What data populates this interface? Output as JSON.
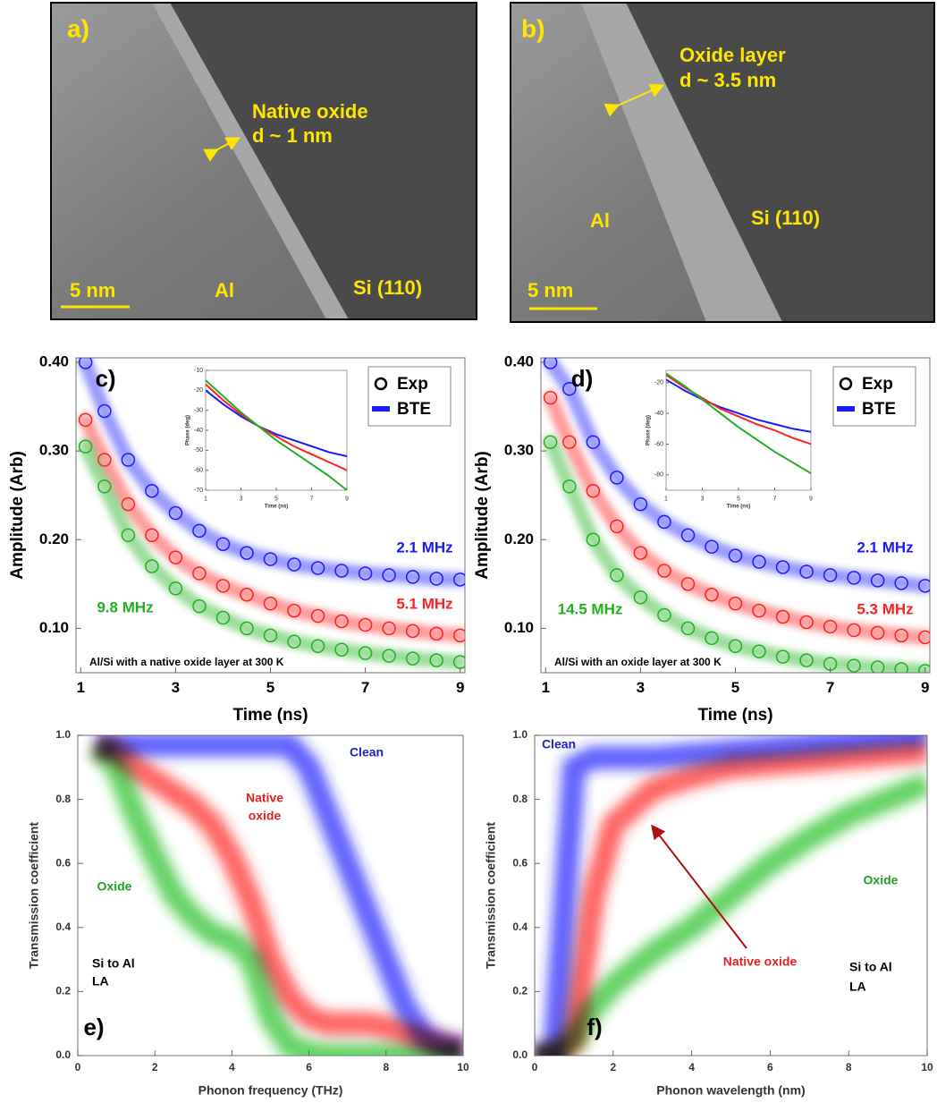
{
  "images": [
    {
      "label": "a)",
      "annotations": [
        "Native oxide",
        "d ~ 1 nm",
        "Al",
        "Si (110)"
      ],
      "scale_bar": "5 nm"
    },
    {
      "label": "b)",
      "annotations": [
        "Oxide layer",
        "d ~ 3.5 nm",
        "Al",
        "Si (110)"
      ],
      "scale_bar": "5 nm"
    }
  ],
  "chart_data": [
    {
      "type": "line",
      "label": "c)",
      "xlabel": "Time (ns)",
      "ylabel": "Amplitude (Arb)",
      "x": [
        1.1,
        1.5,
        2,
        2.5,
        3,
        3.5,
        4,
        4.5,
        5,
        5.5,
        6,
        6.5,
        7,
        7.5,
        8,
        8.5,
        9
      ],
      "xlim": [
        0.9,
        9.1
      ],
      "xticks": [
        1,
        3,
        5,
        7,
        9
      ],
      "ylim": [
        0.05,
        0.405
      ],
      "yticks": [
        {
          "value": 0.1,
          "label": "0.10"
        },
        {
          "value": 0.2,
          "label": "0.20"
        },
        {
          "value": 0.3,
          "label": "0.30"
        },
        {
          "value": 0.4,
          "label": "0.40"
        }
      ],
      "legend": [
        "Exp",
        "BTE"
      ],
      "legend_corner": "upper right",
      "note": "Al/Si with a native oxide layer at 300 K",
      "series": [
        {
          "label": "2.1 MHz",
          "color": "#1a1aff",
          "exp": [
            0.4,
            0.345,
            0.29,
            0.255,
            0.23,
            0.21,
            0.195,
            0.185,
            0.178,
            0.172,
            0.168,
            0.165,
            0.162,
            0.16,
            0.158,
            0.156,
            0.155
          ],
          "bte": [
            0.4,
            0.345,
            0.29,
            0.255,
            0.23,
            0.21,
            0.195,
            0.185,
            0.178,
            0.172,
            0.168,
            0.165,
            0.162,
            0.16,
            0.158,
            0.156,
            0.155
          ]
        },
        {
          "label": "5.1 MHz",
          "color": "#ff2020",
          "exp": [
            0.335,
            0.29,
            0.24,
            0.205,
            0.18,
            0.162,
            0.148,
            0.138,
            0.128,
            0.12,
            0.114,
            0.108,
            0.104,
            0.1,
            0.097,
            0.094,
            0.092
          ],
          "bte": [
            0.335,
            0.29,
            0.24,
            0.205,
            0.18,
            0.162,
            0.148,
            0.138,
            0.128,
            0.12,
            0.114,
            0.108,
            0.104,
            0.1,
            0.097,
            0.094,
            0.092
          ]
        },
        {
          "label": "9.8 MHz",
          "color": "#20b020",
          "exp": [
            0.305,
            0.26,
            0.205,
            0.17,
            0.145,
            0.125,
            0.112,
            0.1,
            0.092,
            0.085,
            0.08,
            0.076,
            0.072,
            0.069,
            0.066,
            0.064,
            0.062
          ],
          "bte": [
            0.305,
            0.26,
            0.205,
            0.17,
            0.145,
            0.125,
            0.112,
            0.1,
            0.092,
            0.085,
            0.08,
            0.076,
            0.072,
            0.069,
            0.066,
            0.064,
            0.062
          ]
        }
      ]
    },
    {
      "type": "line",
      "xlabel": "Time (ns)",
      "ylabel": "Phase (deg)",
      "x": [
        1,
        2,
        3,
        4,
        5,
        6,
        7,
        8,
        9
      ],
      "xlim": [
        1,
        9
      ],
      "xticks": [
        1,
        3,
        5,
        7,
        9
      ],
      "ylim": [
        -70,
        -10
      ],
      "yticks": [
        -10,
        -20,
        -30,
        -40,
        -50,
        -60,
        -70
      ],
      "series": [
        {
          "color": "#1a1aff",
          "values": [
            -20,
            -27,
            -33,
            -38,
            -42,
            -45,
            -48,
            -51,
            -53
          ]
        },
        {
          "color": "#ff2020",
          "values": [
            -17,
            -25,
            -32,
            -38,
            -43,
            -48,
            -52,
            -56,
            -60
          ]
        },
        {
          "color": "#20b020",
          "values": [
            -15,
            -23,
            -31,
            -38,
            -45,
            -51,
            -57,
            -63,
            -70
          ]
        }
      ]
    },
    {
      "type": "line",
      "label": "d)",
      "xlabel": "Time (ns)",
      "ylabel": "Amplitude (Arb)",
      "x": [
        1.1,
        1.5,
        2,
        2.5,
        3,
        3.5,
        4,
        4.5,
        5,
        5.5,
        6,
        6.5,
        7,
        7.5,
        8,
        8.5,
        9
      ],
      "xlim": [
        0.9,
        9.1
      ],
      "xticks": [
        1,
        3,
        5,
        7,
        9
      ],
      "ylim": [
        0.05,
        0.405
      ],
      "yticks": [
        {
          "value": 0.1,
          "label": "0.10"
        },
        {
          "value": 0.2,
          "label": "0.20"
        },
        {
          "value": 0.3,
          "label": "0.30"
        },
        {
          "value": 0.4,
          "label": "0.40"
        }
      ],
      "legend": [
        "Exp",
        "BTE"
      ],
      "legend_corner": "upper right",
      "note": "Al/Si with an oxide layer at 300 K",
      "series": [
        {
          "label": "2.1 MHz",
          "color": "#1a1aff",
          "exp": [
            0.4,
            0.37,
            0.31,
            0.27,
            0.24,
            0.22,
            0.205,
            0.192,
            0.182,
            0.175,
            0.169,
            0.164,
            0.16,
            0.157,
            0.154,
            0.151,
            0.148
          ],
          "bte": [
            0.4,
            0.37,
            0.31,
            0.27,
            0.24,
            0.22,
            0.205,
            0.192,
            0.182,
            0.175,
            0.169,
            0.164,
            0.16,
            0.157,
            0.154,
            0.151,
            0.148
          ]
        },
        {
          "label": "5.3 MHz",
          "color": "#ff2020",
          "exp": [
            0.36,
            0.31,
            0.255,
            0.215,
            0.185,
            0.165,
            0.15,
            0.138,
            0.128,
            0.12,
            0.113,
            0.107,
            0.102,
            0.098,
            0.095,
            0.092,
            0.09
          ],
          "bte": [
            0.36,
            0.31,
            0.255,
            0.215,
            0.185,
            0.165,
            0.15,
            0.138,
            0.128,
            0.12,
            0.113,
            0.107,
            0.102,
            0.098,
            0.095,
            0.092,
            0.09
          ]
        },
        {
          "label": "14.5 MHz",
          "color": "#20b020",
          "exp": [
            0.31,
            0.26,
            0.2,
            0.16,
            0.135,
            0.115,
            0.1,
            0.089,
            0.08,
            0.074,
            0.068,
            0.064,
            0.06,
            0.058,
            0.056,
            0.054,
            0.052
          ],
          "bte": [
            0.31,
            0.26,
            0.2,
            0.16,
            0.135,
            0.115,
            0.1,
            0.089,
            0.08,
            0.074,
            0.068,
            0.064,
            0.06,
            0.058,
            0.056,
            0.054,
            0.052
          ]
        }
      ]
    },
    {
      "type": "line",
      "xlabel": "Time (ns)",
      "ylabel": "Phase (deg)",
      "x": [
        1,
        2,
        3,
        4,
        5,
        6,
        7,
        8,
        9
      ],
      "xlim": [
        1,
        9
      ],
      "xticks": [
        1,
        3,
        5,
        7,
        9
      ],
      "ylim": [
        -90,
        -12
      ],
      "yticks": [
        -20,
        -40,
        -60,
        -80
      ],
      "series": [
        {
          "color": "#1a1aff",
          "values": [
            -18,
            -25,
            -31,
            -36,
            -40,
            -44,
            -47,
            -50,
            -52
          ]
        },
        {
          "color": "#ff2020",
          "values": [
            -15,
            -23,
            -30,
            -37,
            -42,
            -47,
            -51,
            -56,
            -60
          ]
        },
        {
          "color": "#20b020",
          "values": [
            -14,
            -22,
            -31,
            -40,
            -49,
            -57,
            -65,
            -72,
            -79
          ]
        }
      ]
    },
    {
      "type": "line",
      "label": "e)",
      "xlabel": "Phonon frequency (THz)",
      "ylabel": "Transmission coefficient",
      "x": [
        0.5,
        1,
        1.5,
        2,
        2.5,
        3,
        3.5,
        4,
        4.5,
        5,
        5.5,
        6,
        6.5,
        7,
        7.5,
        8,
        8.5,
        9,
        9.5,
        10
      ],
      "xlim": [
        0,
        10
      ],
      "xticks": [
        0,
        2,
        4,
        6,
        8,
        10
      ],
      "ylim": [
        0,
        1
      ],
      "yticks": [
        {
          "value": 0,
          "label": "0.0"
        },
        0.2,
        0.4,
        0.6,
        0.8,
        {
          "value": 1,
          "label": "1.0"
        }
      ],
      "annotations": [
        "Clean",
        "Native",
        "oxide",
        "Oxide",
        "Si to Al",
        "LA"
      ],
      "series": [
        {
          "color": "#20c020",
          "values": [
            0.97,
            0.9,
            0.75,
            0.62,
            0.5,
            0.43,
            0.38,
            0.36,
            0.3,
            0.12,
            0.03,
            0.01,
            0,
            0,
            0,
            0,
            0,
            0,
            0,
            0
          ]
        },
        {
          "color": "#ff2020",
          "values": [
            0.97,
            0.95,
            0.9,
            0.86,
            0.82,
            0.78,
            0.72,
            0.62,
            0.48,
            0.3,
            0.18,
            0.12,
            0.1,
            0.1,
            0.1,
            0.09,
            0.07,
            0.05,
            0.03,
            0.02
          ]
        },
        {
          "color": "#1a1aff",
          "values": [
            0.97,
            0.97,
            0.97,
            0.97,
            0.97,
            0.97,
            0.97,
            0.97,
            0.97,
            0.97,
            0.97,
            0.9,
            0.75,
            0.6,
            0.45,
            0.3,
            0.15,
            0.06,
            0.03,
            0.02
          ]
        }
      ]
    },
    {
      "type": "line",
      "label": "f)",
      "xlabel": "Phonon wavelength (nm)",
      "ylabel": "Transmission coefficient",
      "x": [
        0,
        0.5,
        1,
        1.5,
        2,
        3,
        4,
        5,
        6,
        7,
        8,
        9,
        10
      ],
      "xlim": [
        0,
        10
      ],
      "xticks": [
        0,
        2,
        4,
        6,
        8,
        10
      ],
      "ylim": [
        0,
        1
      ],
      "yticks": [
        {
          "value": 0,
          "label": "0.0"
        },
        0.2,
        0.4,
        0.6,
        0.8,
        {
          "value": 1,
          "label": "1.0"
        }
      ],
      "annotations": [
        "Clean",
        "Native oxide",
        "Oxide",
        "Si to Al",
        "LA"
      ],
      "series": [
        {
          "color": "#20c020",
          "values": [
            0,
            0,
            0.05,
            0.15,
            0.22,
            0.32,
            0.4,
            0.5,
            0.6,
            0.68,
            0.75,
            0.8,
            0.85
          ]
        },
        {
          "color": "#ff2020",
          "values": [
            0,
            0,
            0.05,
            0.5,
            0.72,
            0.83,
            0.87,
            0.9,
            0.91,
            0.92,
            0.93,
            0.94,
            0.95
          ]
        },
        {
          "color": "#1a1aff",
          "values": [
            0,
            0,
            0.9,
            0.93,
            0.93,
            0.93,
            0.94,
            0.95,
            0.96,
            0.97,
            0.98,
            0.99,
            1.0
          ]
        }
      ]
    }
  ]
}
